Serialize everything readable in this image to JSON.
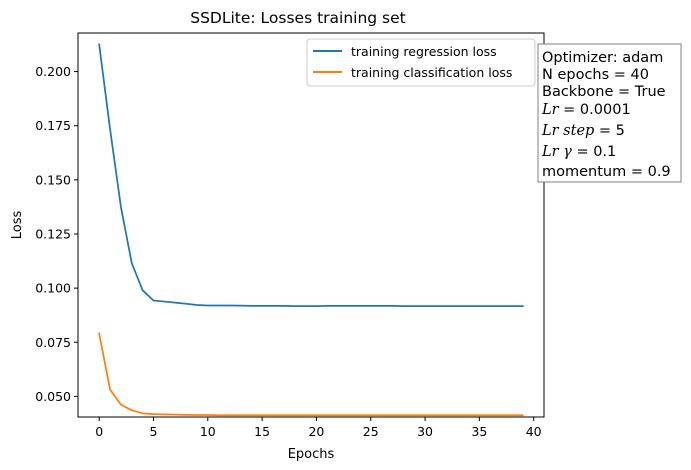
{
  "chart_data": {
    "type": "line",
    "title": "SSDLite: Losses training set",
    "xlabel": "Epochs",
    "ylabel": "Loss",
    "xlim": [
      -1.95,
      40.95
    ],
    "ylim": [
      0.0405,
      0.2178
    ],
    "xticks": [
      0,
      5,
      10,
      15,
      20,
      25,
      30,
      35,
      40
    ],
    "yticks": [
      0.05,
      0.075,
      0.1,
      0.125,
      0.15,
      0.175,
      0.2
    ],
    "ytick_labels": [
      "0.050",
      "0.075",
      "0.100",
      "0.125",
      "0.150",
      "0.175",
      "0.200"
    ],
    "grid": false,
    "legend_position": "top-right",
    "x": [
      0,
      1,
      2,
      3,
      4,
      5,
      6,
      7,
      8,
      9,
      10,
      11,
      12,
      13,
      14,
      15,
      16,
      17,
      18,
      19,
      20,
      21,
      22,
      23,
      24,
      25,
      26,
      27,
      28,
      29,
      30,
      31,
      32,
      33,
      34,
      35,
      36,
      37,
      38,
      39
    ],
    "series": [
      {
        "name": "training regression loss",
        "color": "#1f77b4",
        "values": [
          0.2125,
          0.1735,
          0.1375,
          0.1115,
          0.099,
          0.0943,
          0.0938,
          0.0933,
          0.0928,
          0.0922,
          0.092,
          0.092,
          0.092,
          0.0919,
          0.0918,
          0.0918,
          0.0918,
          0.0918,
          0.0917,
          0.0917,
          0.0917,
          0.0918,
          0.0918,
          0.0918,
          0.0918,
          0.0918,
          0.0918,
          0.0918,
          0.0917,
          0.0917,
          0.0917,
          0.0917,
          0.0917,
          0.0917,
          0.0917,
          0.0917,
          0.0917,
          0.0917,
          0.0917,
          0.0917
        ]
      },
      {
        "name": "training classification loss",
        "color": "#ff7f0e",
        "values": [
          0.079,
          0.0532,
          0.0462,
          0.0436,
          0.0422,
          0.0418,
          0.0417,
          0.0416,
          0.0415,
          0.0414,
          0.0414,
          0.0413,
          0.0413,
          0.0413,
          0.0413,
          0.0413,
          0.0413,
          0.0413,
          0.0413,
          0.0413,
          0.0413,
          0.0413,
          0.0413,
          0.0413,
          0.0413,
          0.0413,
          0.0413,
          0.0413,
          0.0413,
          0.0413,
          0.0413,
          0.0413,
          0.0413,
          0.0413,
          0.0413,
          0.0413,
          0.0413,
          0.0413,
          0.0413,
          0.0413
        ]
      }
    ],
    "annotation": {
      "lines": [
        {
          "text": "Optimizer: adam",
          "italic": false
        },
        {
          "text": "N epochs = 40",
          "italic": false
        },
        {
          "text": "Backbone = True",
          "italic": false
        },
        {
          "var": "Lr",
          "rest": " = 0.0001"
        },
        {
          "var": "Lr step",
          "rest": " = 5"
        },
        {
          "var": "Lr γ",
          "rest": " = 0.1"
        },
        {
          "text": "momentum = 0.9",
          "italic": false
        }
      ]
    }
  }
}
